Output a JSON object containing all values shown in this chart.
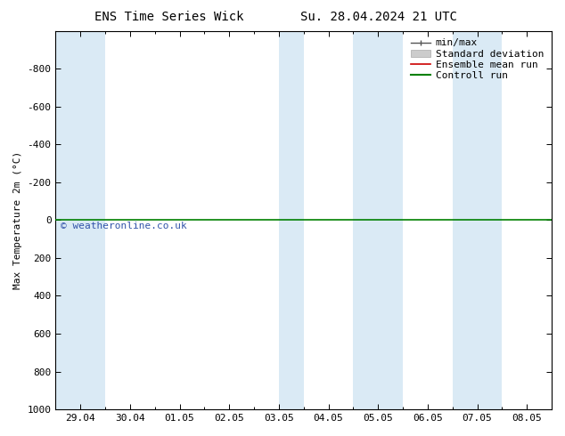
{
  "title_left": "ENS Time Series Wick",
  "title_right": "Su. 28.04.2024 21 UTC",
  "ylabel": "Max Temperature 2m (°C)",
  "ylim_bottom": 1000,
  "ylim_top": -1000,
  "y_ticks": [
    -800,
    -600,
    -400,
    -200,
    0,
    200,
    400,
    600,
    800,
    1000
  ],
  "x_labels": [
    "29.04",
    "30.04",
    "01.05",
    "02.05",
    "03.05",
    "04.05",
    "05.05",
    "06.05",
    "07.05",
    "08.05"
  ],
  "x_positions": [
    0,
    1,
    2,
    3,
    4,
    5,
    6,
    7,
    8,
    9
  ],
  "xlim": [
    -0.5,
    9.5
  ],
  "shaded_regions": [
    [
      -0.5,
      0.5
    ],
    [
      4.0,
      4.5
    ],
    [
      5.5,
      6.5
    ],
    [
      7.5,
      8.5
    ]
  ],
  "shade_color": "#daeaf5",
  "control_run_y": 0,
  "control_run_color": "#008000",
  "ensemble_mean_color": "#cc0000",
  "std_dev_color": "#aaaaaa",
  "minmax_color": "#555555",
  "watermark": "© weatheronline.co.uk",
  "watermark_color": "#3355aa",
  "legend_labels": [
    "min/max",
    "Standard deviation",
    "Ensemble mean run",
    "Controll run"
  ],
  "background_color": "#ffffff",
  "plot_bg_color": "#ffffff",
  "border_color": "#000000",
  "title_fontsize": 10,
  "tick_fontsize": 8,
  "ylabel_fontsize": 8,
  "legend_fontsize": 8
}
